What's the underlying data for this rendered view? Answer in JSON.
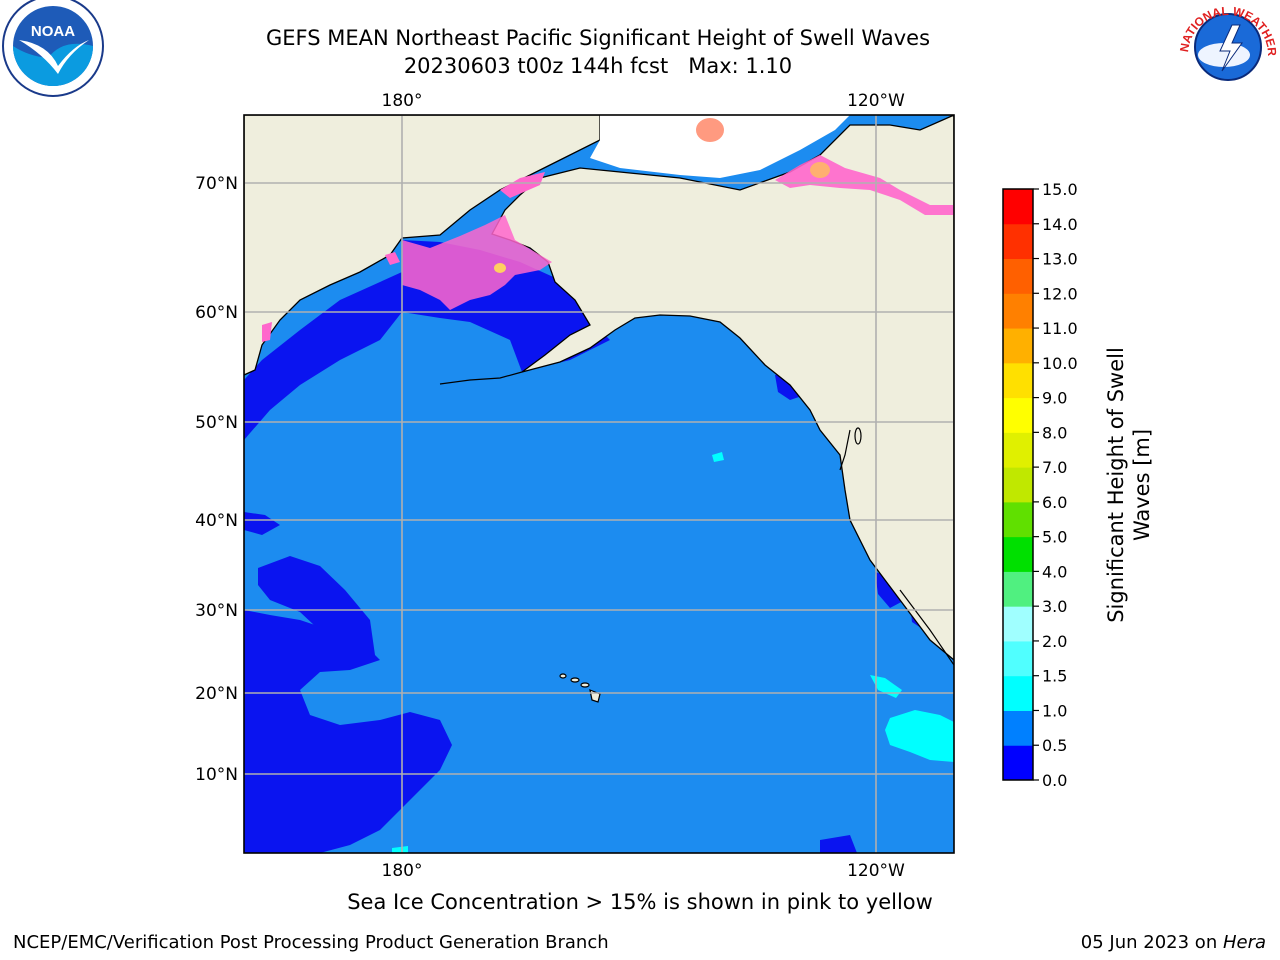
{
  "title_line1": "GEFS MEAN Northeast Pacific Significant Height of Swell Waves",
  "title_line2": "20230603 t00z 144h fcst   Max: 1.10",
  "logos": {
    "left": "noaa-logo",
    "right": "national-weather-service-logo"
  },
  "map": {
    "projection": "mercator",
    "lon_range": [
      "160°E",
      "110°W"
    ],
    "lat_range": [
      2,
      76
    ],
    "lon_labels": [
      "180°",
      "120°W"
    ],
    "lat_labels": [
      "70°N",
      "60°N",
      "50°N",
      "40°N",
      "30°N",
      "20°N",
      "10°N"
    ],
    "gridlines": true,
    "colors": {
      "ocean": "#1c8cf0",
      "land": "#efeedd",
      "low_swell": "#0a14f0",
      "ice": "#ff66cc"
    }
  },
  "colorbar": {
    "label": "Significant Height of Swell Waves [m]",
    "label_line1": "Significant Height of Swell",
    "label_line2": "Waves [m]",
    "ticks": [
      "0.0",
      "0.5",
      "1.0",
      "1.5",
      "2.0",
      "3.0",
      "4.0",
      "5.0",
      "6.0",
      "7.0",
      "8.0",
      "9.0",
      "10.0",
      "11.0",
      "12.0",
      "13.0",
      "14.0",
      "15.0"
    ],
    "colors": [
      "#0000ff",
      "#0080ff",
      "#00ffff",
      "#50ffff",
      "#a0ffff",
      "#50f080",
      "#00e000",
      "#60e000",
      "#c0e800",
      "#e0f000",
      "#ffff00",
      "#ffe000",
      "#ffb000",
      "#ff8000",
      "#ff6000",
      "#ff3000",
      "#ff0000"
    ]
  },
  "note": "Sea Ice Concentration > 15% is shown in pink to yellow",
  "credit": "NCEP/EMC/Verification Post Processing Product Generation Branch",
  "date_text": "05 Jun 2023 on ",
  "date_machine": "Hera"
}
